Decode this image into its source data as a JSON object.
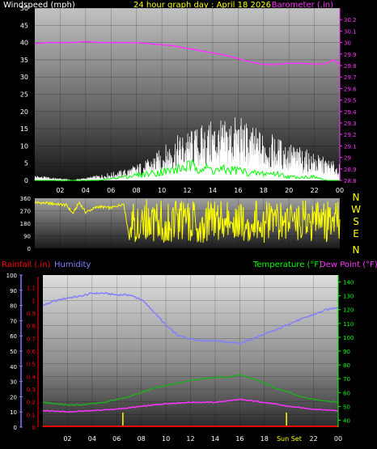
{
  "header": {
    "left_label": "Windspeed (mph)",
    "title": "24 hour graph day : April 18 2026",
    "right_label": "Barometer (.in)"
  },
  "compass": {
    "n": "N",
    "w": "W",
    "s": "S",
    "e": "E",
    "n2": "N"
  },
  "bottom_labels": {
    "rain": "Rainfall (.in)",
    "humidity": "Humidity",
    "temp": "Temperature (°F)",
    "dew": "Dew Point (°F)"
  },
  "colors": {
    "wind_white": "#ffffff",
    "wind_gust_green": "#00ff00",
    "barometer": "#ff33ff",
    "direction": "#ffff00",
    "humidity": "#8080ff",
    "temperature": "#22aa22",
    "dewpoint": "#ff33ff",
    "rain": "#ff0000",
    "markers": "#ffff00"
  },
  "chart_data": [
    {
      "type": "line",
      "name": "wind_barometer",
      "x_ticks": [
        "02",
        "04",
        "06",
        "08",
        "10",
        "12",
        "14",
        "16",
        "18",
        "20",
        "22",
        "00"
      ],
      "left_axis": {
        "label": "Windspeed (mph)",
        "ylim": [
          0,
          50
        ],
        "ticks": [
          "0",
          "5",
          "10",
          "15",
          "20",
          "25",
          "30",
          "35",
          "40",
          "45",
          "50"
        ]
      },
      "right_axis": {
        "label": "Barometer (.in)",
        "ylim": [
          28.8,
          30.3
        ],
        "ticks": [
          "28.8",
          "28.9",
          "29",
          "29.1",
          "29.2",
          "29.3",
          "29.4",
          "29.5",
          "29.6",
          "29.7",
          "29.8",
          "29.9",
          "30",
          "30.1",
          "30.2"
        ]
      },
      "series": [
        {
          "name": "Barometer",
          "axis": "right",
          "x": [
            0,
            1,
            2,
            3,
            4,
            5,
            6,
            7,
            8,
            9,
            10,
            11,
            12,
            13,
            14,
            15,
            16,
            17,
            18,
            19,
            20,
            21,
            22,
            23,
            23.5,
            24
          ],
          "values": [
            29.99,
            30.0,
            30.0,
            30.0,
            30.01,
            30.0,
            30.0,
            30.0,
            30.0,
            29.99,
            29.98,
            29.97,
            29.95,
            29.93,
            29.91,
            29.89,
            29.86,
            29.83,
            29.81,
            29.81,
            29.82,
            29.82,
            29.81,
            29.82,
            29.85,
            29.81
          ]
        },
        {
          "name": "Windspeed",
          "axis": "left",
          "x": [
            0,
            3,
            5,
            7,
            8,
            9,
            10,
            11,
            12,
            13,
            14,
            15,
            16,
            17,
            18,
            19,
            20,
            21,
            22,
            23,
            24
          ],
          "values": [
            1,
            0,
            1,
            2,
            3,
            4,
            6,
            8,
            9,
            10,
            11,
            11,
            12,
            10,
            9,
            8,
            7,
            6,
            5,
            4,
            3
          ]
        },
        {
          "name": "Wind Gust",
          "axis": "left",
          "x": [
            0,
            5,
            7,
            9,
            11,
            12,
            13,
            14,
            15,
            16,
            17,
            18,
            19,
            20,
            21,
            22,
            23,
            24
          ],
          "values": [
            0,
            0,
            1,
            2,
            3,
            4,
            4,
            3,
            3,
            3,
            2,
            2,
            2,
            1,
            1,
            1,
            0,
            0
          ]
        }
      ]
    },
    {
      "type": "line",
      "name": "wind_direction",
      "x_ticks": [
        "02",
        "04",
        "06",
        "08",
        "10",
        "12",
        "14",
        "16",
        "18",
        "20",
        "22",
        "00"
      ],
      "ylim": [
        0,
        360
      ],
      "ticks": [
        "0",
        "90",
        "180",
        "270",
        "360"
      ],
      "series": [
        {
          "name": "Wind Direction",
          "x": [
            0,
            1.5,
            2.5,
            3,
            3.5,
            4,
            5,
            6,
            7,
            7.5,
            8,
            9,
            10,
            11,
            12,
            13,
            14,
            15,
            16,
            17,
            18,
            19,
            20,
            21,
            22,
            23,
            24
          ],
          "values": [
            330,
            320,
            310,
            250,
            330,
            260,
            300,
            290,
            320,
            40,
            200,
            150,
            180,
            200,
            160,
            220,
            200,
            170,
            190,
            200,
            180,
            210,
            190,
            170,
            200,
            180,
            160
          ]
        }
      ]
    },
    {
      "type": "line",
      "name": "temp_humidity_rain",
      "x_ticks": [
        "02",
        "04",
        "06",
        "08",
        "10",
        "12",
        "14",
        "16",
        "18",
        "Sun",
        "Set",
        "22",
        "00"
      ],
      "humidity_axis": {
        "ylim": [
          0,
          100
        ],
        "ticks": [
          "0",
          "10",
          "20",
          "30",
          "40",
          "50",
          "60",
          "70",
          "80",
          "90",
          "100"
        ]
      },
      "rain_axis": {
        "ylim": [
          0,
          1.2
        ],
        "ticks": [
          "0",
          "0.1",
          "0.2",
          "0.3",
          "0.4",
          "0.5",
          "0.6",
          "0.7",
          "0.8",
          "0.9",
          "1",
          "1.1"
        ]
      },
      "temp_axis": {
        "ylim": [
          35,
          145
        ],
        "ticks": [
          "40",
          "50",
          "60",
          "70",
          "80",
          "90",
          "100",
          "110",
          "120",
          "130",
          "140"
        ]
      },
      "markers": {
        "sunrise_hour": 6.5,
        "sunset_hour": 19.8
      },
      "series": [
        {
          "name": "Humidity",
          "axis": "humidity",
          "x": [
            0,
            1,
            2,
            3,
            4,
            5,
            6,
            7,
            8,
            9,
            10,
            11,
            12,
            13,
            14,
            15,
            16,
            17,
            18,
            19,
            20,
            21,
            22,
            23,
            24
          ],
          "values": [
            80,
            83,
            85,
            86,
            88,
            88,
            87,
            87,
            84,
            76,
            67,
            60,
            58,
            57,
            57,
            56,
            55,
            58,
            61,
            64,
            68,
            71,
            74,
            77,
            79
          ]
        },
        {
          "name": "Temperature",
          "axis": "temp",
          "x": [
            0,
            1,
            2,
            3,
            4,
            5,
            6,
            7,
            8,
            9,
            10,
            11,
            12,
            13,
            14,
            15,
            16,
            17,
            18,
            19,
            20,
            21,
            22,
            23,
            24
          ],
          "values": [
            53,
            52,
            51,
            51,
            52,
            53,
            55,
            57,
            60,
            63,
            65,
            67,
            69,
            70,
            71,
            71,
            73,
            70,
            67,
            63,
            60,
            57,
            55,
            54,
            53
          ]
        },
        {
          "name": "Dew Point",
          "axis": "temp",
          "x": [
            0,
            2,
            4,
            6,
            8,
            10,
            12,
            14,
            16,
            17,
            18,
            20,
            22,
            24
          ],
          "values": [
            47,
            46,
            47,
            48,
            50,
            52,
            53,
            53,
            55,
            54,
            53,
            50,
            48,
            47
          ]
        },
        {
          "name": "Rainfall",
          "axis": "rain",
          "x": [
            0,
            24
          ],
          "values": [
            0,
            0
          ]
        }
      ]
    }
  ]
}
